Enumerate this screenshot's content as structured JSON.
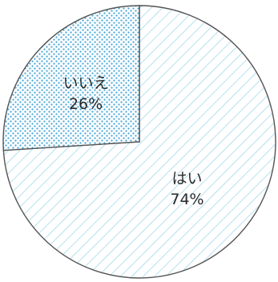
{
  "chart_data": {
    "type": "pie",
    "start_angle_deg": 90,
    "direction": "clockwise",
    "slices": [
      {
        "label": "はい",
        "percent_label": "74%",
        "value": 74,
        "fill_pattern": "diagonal-hatch",
        "color": "#7ec8e3"
      },
      {
        "label": "いいえ",
        "percent_label": "26%",
        "value": 26,
        "fill_pattern": "dots",
        "color": "#4aa8d8"
      }
    ],
    "outline_color": "#555555"
  }
}
